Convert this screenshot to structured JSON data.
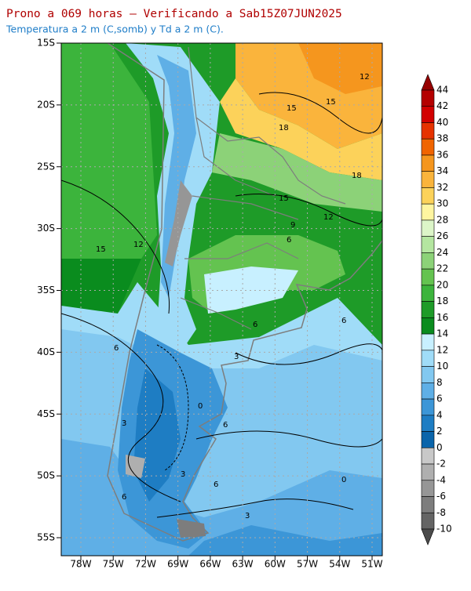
{
  "header": {
    "title": "Prono a 069 horas — Verificando a Sab15Z07JUN2025",
    "subtitle": "Temperatura a 2 m (C,somb) y Td a 2 m (C)."
  },
  "map": {
    "lat_labels": [
      "15S",
      "20S",
      "25S",
      "30S",
      "35S",
      "40S",
      "45S",
      "50S",
      "55S"
    ],
    "lon_labels": [
      "78W",
      "75W",
      "72W",
      "69W",
      "66W",
      "63W",
      "60W",
      "57W",
      "54W",
      "51W"
    ],
    "contour_labels": [
      "12",
      "15",
      "15",
      "18",
      "18",
      "15",
      "12",
      "9",
      "12",
      "15",
      "6",
      "6",
      "6",
      "6",
      "3",
      "0",
      "6",
      "3",
      "3",
      "6",
      "0",
      "3",
      "6"
    ]
  },
  "colorbar": {
    "labels": [
      44,
      42,
      40,
      38,
      36,
      34,
      32,
      30,
      28,
      26,
      24,
      22,
      20,
      18,
      16,
      14,
      12,
      10,
      8,
      6,
      4,
      2,
      0,
      -2,
      -4,
      -6,
      -8,
      -10
    ],
    "colors": [
      "#960000",
      "#b40000",
      "#d20000",
      "#e63200",
      "#f06400",
      "#f5961e",
      "#fab43c",
      "#fcd25a",
      "#fff5a0",
      "#dcf5c8",
      "#b4e6a0",
      "#8cd278",
      "#64c350",
      "#3cb43c",
      "#1e9b28",
      "#0a8c1e",
      "#c8f0ff",
      "#a0dcf8",
      "#82c8f0",
      "#5fafe6",
      "#3c96d7",
      "#1e7dc3",
      "#0a64aa",
      "#c8c8c8",
      "#afafaf",
      "#969696",
      "#7d7d7d",
      "#646464",
      "#4b4b4b"
    ]
  }
}
